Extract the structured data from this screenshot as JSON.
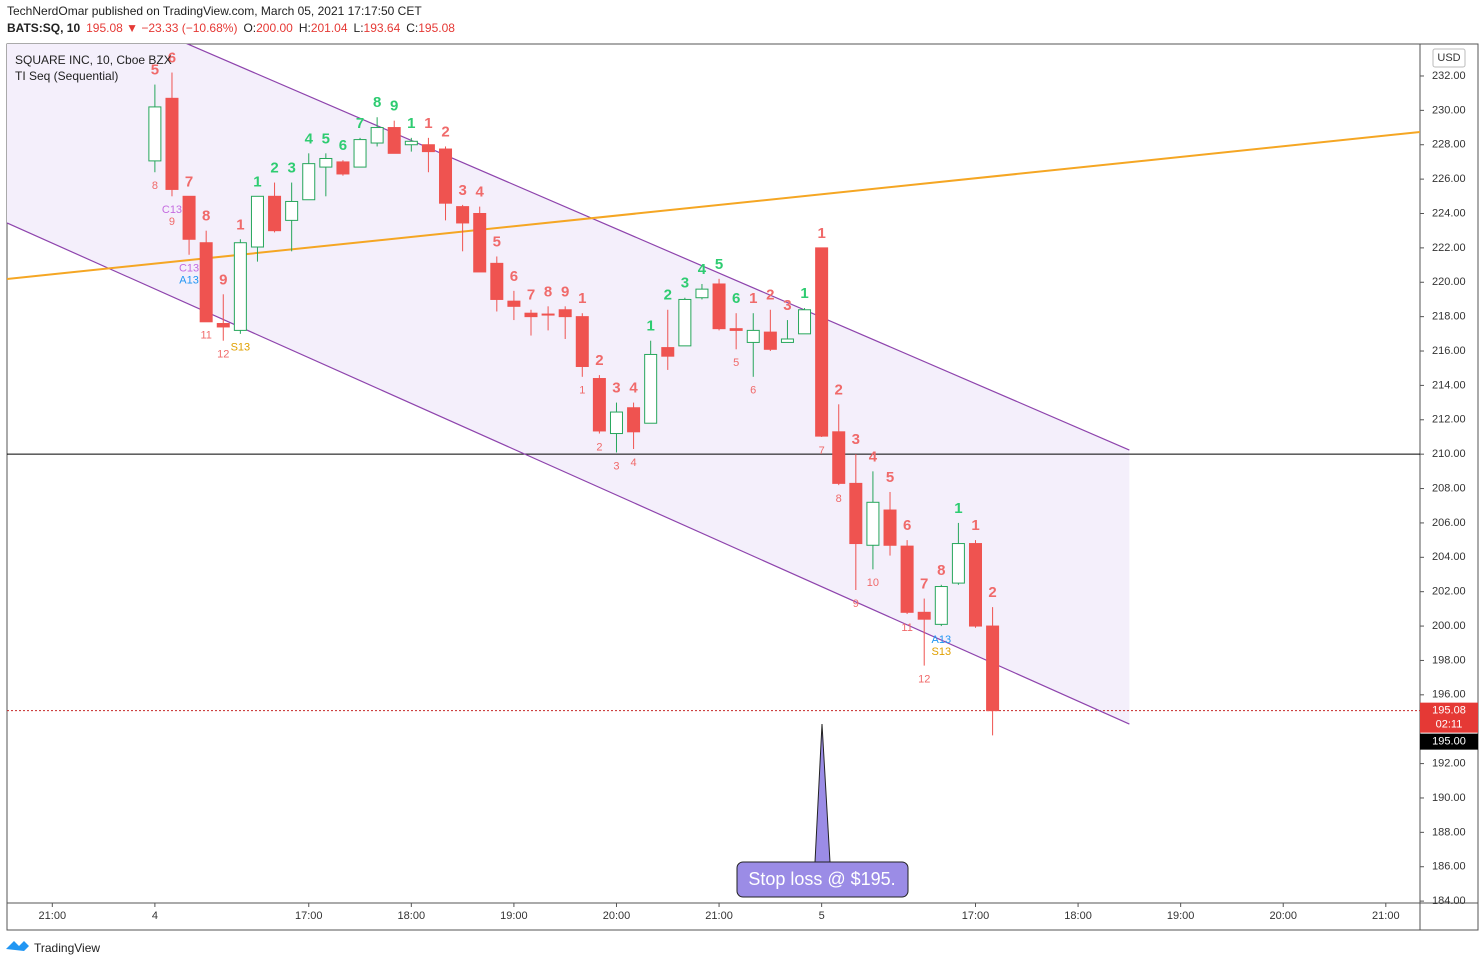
{
  "header": {
    "line1": "TechNerdOmar published on TradingView.com, March 05, 2021 17:17:50 CET",
    "symbol": "BATS:SQ, 10",
    "change": "195.08 ▼ −23.33 (−10.68%)",
    "ohlc": [
      [
        "O:",
        "200.00"
      ],
      [
        "H:",
        "201.04"
      ],
      [
        "L:",
        "193.64"
      ],
      [
        "C:",
        "195.08"
      ]
    ]
  },
  "legend": {
    "name": "SQUARE INC, 10, Cboe BZX",
    "indicator": "TI Seq (Sequential)"
  },
  "currency": "USD",
  "footer": "TradingView",
  "callout": "Stop loss @ $195.",
  "chart_data": {
    "type": "candlestick",
    "up_color": "#26a65b",
    "down_color": "#ef5350",
    "xlim": [
      -8.65,
      74
    ],
    "xticks": [
      {
        "value": -6,
        "label": "21:00"
      },
      {
        "value": 0,
        "label": "4"
      },
      {
        "value": 9,
        "label": "17:00"
      },
      {
        "value": 15,
        "label": "18:00"
      },
      {
        "value": 21,
        "label": "19:00"
      },
      {
        "value": 27,
        "label": "20:00"
      },
      {
        "value": 33,
        "label": "21:00"
      },
      {
        "value": 39,
        "label": "5"
      },
      {
        "value": 48,
        "label": "17:00"
      },
      {
        "value": 54,
        "label": "18:00"
      },
      {
        "value": 60,
        "label": "19:00"
      },
      {
        "value": 66,
        "label": "20:00"
      },
      {
        "value": 72,
        "label": "21:00"
      }
    ],
    "ylim": [
      183.89,
      233.86
    ],
    "yticks": [
      {
        "value": 184,
        "label": "184.00"
      },
      {
        "value": 186,
        "label": "186.00"
      },
      {
        "value": 188,
        "label": "188.00"
      },
      {
        "value": 190,
        "label": "190.00"
      },
      {
        "value": 192,
        "label": "192.00"
      },
      {
        "value": 194,
        "label": "194.00"
      },
      {
        "value": 196,
        "label": "196.00"
      },
      {
        "value": 198,
        "label": "198.00"
      },
      {
        "value": 200,
        "label": "200.00"
      },
      {
        "value": 202,
        "label": "202.00"
      },
      {
        "value": 204,
        "label": "204.00"
      },
      {
        "value": 206,
        "label": "206.00"
      },
      {
        "value": 208,
        "label": "208.00"
      },
      {
        "value": 210,
        "label": "210.00"
      },
      {
        "value": 212,
        "label": "212.00"
      },
      {
        "value": 214,
        "label": "214.00"
      },
      {
        "value": 216,
        "label": "216.00"
      },
      {
        "value": 218,
        "label": "218.00"
      },
      {
        "value": 220,
        "label": "220.00"
      },
      {
        "value": 222,
        "label": "222.00"
      },
      {
        "value": 224,
        "label": "224.00"
      },
      {
        "value": 226,
        "label": "226.00"
      },
      {
        "value": 228,
        "label": "228.00"
      },
      {
        "value": 230,
        "label": "230.00"
      },
      {
        "value": 232,
        "label": "232.00"
      }
    ],
    "open": [
      227.06,
      230.7,
      225.0,
      222.3,
      217.6,
      217.2,
      222.05,
      225.0,
      223.6,
      224.8,
      226.7,
      227.0,
      226.7,
      228.1,
      229.0,
      228.0,
      228.0,
      227.75,
      224.4,
      224.0,
      221.1,
      218.9,
      218.2,
      218.15,
      218.4,
      218.0,
      214.4,
      211.2,
      212.7,
      211.8,
      216.2,
      216.3,
      219.1,
      219.9,
      217.3,
      216.5,
      217.1,
      216.5,
      217.0,
      222.0,
      211.3,
      208.3,
      204.7,
      206.75,
      204.65,
      200.8,
      200.1,
      202.5,
      204.8,
      200.0
    ],
    "high": [
      231.5,
      232.2,
      225.0,
      223.0,
      219.3,
      222.5,
      225.0,
      225.8,
      225.8,
      227.5,
      227.5,
      227.1,
      228.4,
      229.6,
      229.4,
      228.4,
      228.4,
      227.9,
      224.5,
      224.4,
      221.5,
      219.5,
      218.4,
      218.6,
      218.6,
      218.2,
      214.6,
      213.0,
      213.0,
      216.6,
      218.4,
      219.1,
      219.9,
      220.2,
      218.2,
      218.2,
      218.4,
      217.8,
      218.5,
      222.0,
      212.9,
      210.0,
      209.0,
      207.8,
      205.0,
      201.6,
      202.4,
      206.0,
      205.0,
      201.1
    ],
    "low": [
      226.4,
      225.0,
      221.6,
      217.7,
      216.6,
      217.0,
      221.2,
      222.9,
      221.8,
      224.8,
      225.0,
      226.2,
      226.7,
      227.9,
      227.5,
      227.6,
      226.4,
      223.6,
      221.8,
      220.6,
      218.3,
      217.8,
      216.9,
      217.2,
      216.7,
      214.5,
      211.2,
      210.1,
      210.3,
      211.8,
      214.9,
      216.3,
      219.0,
      217.2,
      216.1,
      214.5,
      216.0,
      216.5,
      217.0,
      211.0,
      208.2,
      202.1,
      203.3,
      204.1,
      200.7,
      197.7,
      200.0,
      202.4,
      199.9,
      193.64
    ],
    "close": [
      230.2,
      225.4,
      222.5,
      217.7,
      217.4,
      222.3,
      225.0,
      223.0,
      224.7,
      226.9,
      227.2,
      226.3,
      228.3,
      229.0,
      227.5,
      228.2,
      227.6,
      224.6,
      223.45,
      220.6,
      219.0,
      218.6,
      218.0,
      218.15,
      218.0,
      215.1,
      211.35,
      212.45,
      211.3,
      215.8,
      215.7,
      219.0,
      219.6,
      217.3,
      217.2,
      217.2,
      216.1,
      216.7,
      218.4,
      211.05,
      208.3,
      204.8,
      207.2,
      204.7,
      200.8,
      200.4,
      202.3,
      204.8,
      200.0,
      195.08
    ],
    "seq_above": [
      {
        "text": "5",
        "color": "#f06a6a"
      },
      {
        "text": "6",
        "color": "#f06a6a"
      },
      {
        "text": "7",
        "color": "#f06a6a"
      },
      {
        "text": "8",
        "color": "#f06a6a"
      },
      {
        "text": "9",
        "color": "#f06a6a"
      },
      {
        "text": "1",
        "color": "#f06a6a"
      },
      {
        "text": "1",
        "color": "#2ecc71"
      },
      {
        "text": "2",
        "color": "#2ecc71"
      },
      {
        "text": "3",
        "color": "#2ecc71"
      },
      {
        "text": "4",
        "color": "#2ecc71"
      },
      {
        "text": "5",
        "color": "#2ecc71"
      },
      {
        "text": "6",
        "color": "#2ecc71"
      },
      {
        "text": "7",
        "color": "#2ecc71"
      },
      {
        "text": "8",
        "color": "#2ecc71"
      },
      {
        "text": "9",
        "color": "#2ecc71"
      },
      {
        "text": "1",
        "color": "#2ecc71"
      },
      {
        "text": "1",
        "color": "#f06a6a"
      },
      {
        "text": "2",
        "color": "#f06a6a"
      },
      {
        "text": "3",
        "color": "#f06a6a"
      },
      {
        "text": "4",
        "color": "#f06a6a"
      },
      {
        "text": "5",
        "color": "#f06a6a"
      },
      {
        "text": "6",
        "color": "#f06a6a"
      },
      {
        "text": "7",
        "color": "#f06a6a"
      },
      {
        "text": "8",
        "color": "#f06a6a"
      },
      {
        "text": "9",
        "color": "#f06a6a"
      },
      {
        "text": "1",
        "color": "#f06a6a"
      },
      {
        "text": "2",
        "color": "#f06a6a"
      },
      {
        "text": "3",
        "color": "#f06a6a"
      },
      {
        "text": "4",
        "color": "#f06a6a"
      },
      {
        "text": "1",
        "color": "#2ecc71"
      },
      {
        "text": "2",
        "color": "#2ecc71"
      },
      {
        "text": "3",
        "color": "#2ecc71"
      },
      {
        "text": "4",
        "color": "#2ecc71"
      },
      {
        "text": "5",
        "color": "#2ecc71"
      },
      {
        "text": "6",
        "color": "#2ecc71"
      },
      {
        "text": "1",
        "color": "#f06a6a"
      },
      {
        "text": "2",
        "color": "#f06a6a"
      },
      {
        "text": "3",
        "color": "#f06a6a"
      },
      {
        "text": "1",
        "color": "#2ecc71"
      },
      {
        "text": "1",
        "color": "#f06a6a"
      },
      {
        "text": "2",
        "color": "#f06a6a"
      },
      {
        "text": "3",
        "color": "#f06a6a"
      },
      {
        "text": "4",
        "color": "#f06a6a"
      },
      {
        "text": "5",
        "color": "#f06a6a"
      },
      {
        "text": "6",
        "color": "#f06a6a"
      },
      {
        "text": "7",
        "color": "#f06a6a"
      },
      {
        "text": "8",
        "color": "#f06a6a"
      },
      {
        "text": "1",
        "color": "#2ecc71"
      },
      {
        "text": "1",
        "color": "#f06a6a"
      },
      {
        "text": "2",
        "color": "#f06a6a"
      }
    ],
    "seq_below": [
      [
        {
          "text": "8",
          "color": "#f06a6a"
        }
      ],
      [
        {
          "text": "C13",
          "color": "#c46be0"
        },
        {
          "text": "9",
          "color": "#f06a6a"
        }
      ],
      [
        {
          "text": "C13",
          "color": "#c46be0"
        },
        {
          "text": "A13",
          "color": "#2196f3"
        }
      ],
      [
        {
          "text": "11",
          "color": "#f06a6a"
        }
      ],
      [
        {
          "text": "12",
          "color": "#f06a6a"
        }
      ],
      [
        {
          "text": "S13",
          "color": "#e0a000"
        }
      ],
      null,
      null,
      null,
      null,
      null,
      null,
      null,
      null,
      null,
      null,
      null,
      null,
      null,
      null,
      null,
      null,
      null,
      null,
      null,
      [
        {
          "text": "1",
          "color": "#f06a6a"
        }
      ],
      [
        {
          "text": "2",
          "color": "#f06a6a"
        }
      ],
      [
        {
          "text": "3",
          "color": "#f06a6a"
        }
      ],
      [
        {
          "text": "4",
          "color": "#f06a6a"
        }
      ],
      null,
      null,
      null,
      null,
      null,
      [
        {
          "text": "5",
          "color": "#f06a6a"
        }
      ],
      [
        {
          "text": "6",
          "color": "#f06a6a"
        }
      ],
      null,
      null,
      null,
      [
        {
          "text": "7",
          "color": "#f06a6a"
        }
      ],
      [
        {
          "text": "8",
          "color": "#f06a6a"
        }
      ],
      [
        {
          "text": "9",
          "color": "#f06a6a"
        }
      ],
      [
        {
          "text": "10",
          "color": "#f06a6a"
        }
      ],
      null,
      [
        {
          "text": "11",
          "color": "#f06a6a"
        }
      ],
      [
        {
          "text": "12",
          "color": "#f06a6a"
        }
      ],
      [
        {
          "text": "A13",
          "color": "#2196f3"
        },
        {
          "text": "S13",
          "color": "#e0a000"
        }
      ],
      null,
      null,
      null
    ],
    "trendlines": [
      {
        "color": "#8e44ad",
        "x": [
          -8.65,
          57
        ],
        "y": [
          238.39,
          210.24
        ]
      },
      {
        "color": "#8e44ad",
        "x": [
          -8.65,
          57
        ],
        "y": [
          223.45,
          194.3
        ]
      },
      {
        "color": "#f5a623",
        "x": [
          -8.65,
          74
        ],
        "y": [
          220.19,
          228.74
        ]
      }
    ],
    "channel_fill": "#f4effb",
    "hlines": [
      {
        "value": 210,
        "color": "#000000",
        "dashed": false
      },
      {
        "value": 195.08,
        "color": "#c62828",
        "dashed": true
      }
    ],
    "price_tags": [
      {
        "value": 195.08,
        "label": "195.08",
        "sub": "02:11",
        "color": "#e53935"
      },
      {
        "value": 195.0,
        "label": "195.00",
        "color": "#000000"
      }
    ]
  }
}
